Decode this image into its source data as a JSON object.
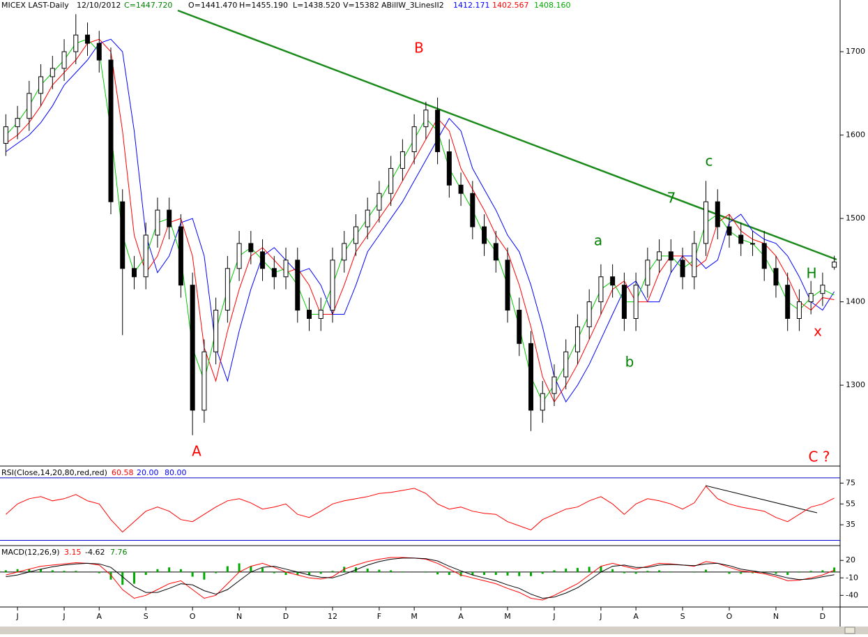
{
  "chart_data": [
    {
      "type": "candlestick",
      "title": "MICEX LAST-Daily",
      "date": "12/10/2012",
      "quote": [
        "C=1447.720",
        "O=1441.470",
        "H=1455.190",
        "L=1438.520",
        "V=15382"
      ],
      "indicator": "ABillW_3LinesII2",
      "categories": [
        null,
        "J",
        null,
        null,
        null,
        "J",
        null,
        null,
        "A",
        null,
        null,
        null,
        "S",
        null,
        null,
        null,
        "O",
        null,
        null,
        null,
        "N",
        null,
        null,
        null,
        "D",
        null,
        null,
        null,
        "12",
        null,
        null,
        null,
        "F",
        null,
        null,
        "M",
        null,
        null,
        null,
        "A",
        null,
        null,
        null,
        "M",
        null,
        null,
        null,
        "J",
        null,
        null,
        null,
        "J",
        null,
        null,
        "A",
        null,
        null,
        null,
        "S",
        null,
        null,
        null,
        "O",
        null,
        null,
        null,
        "N",
        null,
        null,
        null,
        "D",
        null
      ],
      "open": [
        1590,
        1610,
        1620,
        1650,
        1670,
        1680,
        1700,
        1720,
        1710,
        1690,
        1520,
        1440,
        1430,
        1480,
        1510,
        1490,
        1420,
        1270,
        1340,
        1390,
        1440,
        1470,
        1460,
        1440,
        1430,
        1450,
        1390,
        1380,
        1390,
        1450,
        1470,
        1490,
        1510,
        1530,
        1560,
        1580,
        1610,
        1630,
        1580,
        1540,
        1530,
        1490,
        1470,
        1450,
        1390,
        1350,
        1270,
        1290,
        1310,
        1340,
        1370,
        1400,
        1430,
        1420,
        1380,
        1420,
        1450,
        1460,
        1450,
        1430,
        1470,
        1520,
        1490,
        1480,
        1470,
        1470,
        1440,
        1420,
        1380,
        1400,
        1410,
        1441.47
      ],
      "high": [
        1625,
        1635,
        1665,
        1685,
        1695,
        1715,
        1745,
        1735,
        1725,
        1705,
        1535,
        1455,
        1495,
        1525,
        1525,
        1505,
        1435,
        1355,
        1405,
        1455,
        1485,
        1485,
        1475,
        1455,
        1465,
        1465,
        1405,
        1405,
        1465,
        1485,
        1505,
        1525,
        1545,
        1575,
        1595,
        1625,
        1640,
        1645,
        1595,
        1555,
        1545,
        1505,
        1485,
        1465,
        1405,
        1365,
        1305,
        1325,
        1355,
        1385,
        1415,
        1445,
        1445,
        1435,
        1435,
        1465,
        1475,
        1475,
        1465,
        1485,
        1545,
        1535,
        1505,
        1495,
        1485,
        1485,
        1455,
        1435,
        1415,
        1425,
        1435,
        1455.19
      ],
      "low": [
        1575,
        1595,
        1605,
        1635,
        1655,
        1665,
        1685,
        1695,
        1675,
        1505,
        1360,
        1415,
        1415,
        1465,
        1475,
        1405,
        1240,
        1255,
        1325,
        1375,
        1425,
        1445,
        1425,
        1415,
        1415,
        1375,
        1365,
        1365,
        1375,
        1435,
        1455,
        1475,
        1495,
        1515,
        1545,
        1565,
        1595,
        1565,
        1525,
        1515,
        1475,
        1455,
        1435,
        1375,
        1335,
        1245,
        1255,
        1275,
        1295,
        1325,
        1355,
        1385,
        1405,
        1365,
        1365,
        1405,
        1435,
        1435,
        1415,
        1415,
        1455,
        1475,
        1465,
        1455,
        1455,
        1425,
        1405,
        1365,
        1365,
        1385,
        1395,
        1438.52
      ],
      "close": [
        1610,
        1620,
        1650,
        1670,
        1680,
        1700,
        1720,
        1710,
        1690,
        1520,
        1440,
        1430,
        1480,
        1510,
        1490,
        1420,
        1270,
        1340,
        1390,
        1440,
        1470,
        1460,
        1440,
        1430,
        1450,
        1390,
        1380,
        1390,
        1450,
        1470,
        1490,
        1510,
        1530,
        1560,
        1580,
        1610,
        1630,
        1580,
        1540,
        1530,
        1490,
        1470,
        1450,
        1390,
        1350,
        1270,
        1290,
        1310,
        1340,
        1370,
        1400,
        1430,
        1420,
        1380,
        1420,
        1450,
        1460,
        1450,
        1430,
        1470,
        1520,
        1490,
        1480,
        1470,
        1470,
        1440,
        1420,
        1380,
        1400,
        1410,
        1420,
        1447.72
      ],
      "series": [
        {
          "color": "#0000ff",
          "current": "1412.171",
          "values": [
            1580,
            1590,
            1600,
            1615,
            1635,
            1660,
            1675,
            1690,
            1710,
            1715,
            1700,
            1605,
            1480,
            1435,
            1455,
            1495,
            1500,
            1455,
            1345,
            1305,
            1365,
            1415,
            1455,
            1465,
            1450,
            1435,
            1440,
            1420,
            1385,
            1385,
            1420,
            1460,
            1480,
            1500,
            1520,
            1545,
            1570,
            1595,
            1620,
            1605,
            1560,
            1535,
            1510,
            1480,
            1460,
            1420,
            1370,
            1310,
            1280,
            1300,
            1325,
            1355,
            1385,
            1415,
            1425,
            1400,
            1400,
            1435,
            1455,
            1455,
            1440,
            1450,
            1495,
            1505,
            1485,
            1475,
            1470,
            1455,
            1430,
            1400,
            1390,
            1412.171
          ]
        },
        {
          "color": "#ff0000",
          "current": "1402.567",
          "values": [
            1590,
            1600,
            1615,
            1635,
            1660,
            1675,
            1690,
            1710,
            1715,
            1700,
            1605,
            1480,
            1435,
            1455,
            1495,
            1500,
            1455,
            1345,
            1305,
            1365,
            1415,
            1455,
            1465,
            1450,
            1435,
            1440,
            1420,
            1385,
            1385,
            1420,
            1460,
            1480,
            1500,
            1520,
            1545,
            1570,
            1595,
            1620,
            1605,
            1560,
            1535,
            1510,
            1480,
            1460,
            1420,
            1370,
            1310,
            1280,
            1300,
            1325,
            1355,
            1385,
            1415,
            1425,
            1400,
            1400,
            1435,
            1455,
            1455,
            1440,
            1450,
            1495,
            1505,
            1485,
            1475,
            1470,
            1455,
            1430,
            1400,
            1390,
            1405,
            1402.567
          ]
        },
        {
          "color": "#00cc00",
          "current": "1408.160",
          "values": [
            1600,
            1615,
            1635,
            1660,
            1675,
            1690,
            1710,
            1715,
            1700,
            1605,
            1480,
            1435,
            1455,
            1495,
            1500,
            1455,
            1345,
            1305,
            1365,
            1415,
            1455,
            1465,
            1450,
            1435,
            1440,
            1420,
            1385,
            1385,
            1420,
            1460,
            1480,
            1500,
            1520,
            1545,
            1570,
            1595,
            1620,
            1605,
            1560,
            1535,
            1510,
            1480,
            1460,
            1420,
            1370,
            1310,
            1280,
            1300,
            1325,
            1355,
            1385,
            1415,
            1425,
            1400,
            1400,
            1435,
            1455,
            1455,
            1440,
            1450,
            1495,
            1505,
            1485,
            1475,
            1470,
            1455,
            1430,
            1400,
            1390,
            1405,
            1415,
            1408.16
          ]
        }
      ],
      "ylim": [
        1203,
        1762
      ],
      "yticks": [
        1300,
        1400,
        1500,
        1600,
        1700
      ],
      "annotations": [
        "B",
        "A",
        "a",
        "b",
        "c",
        "7",
        "H",
        "x",
        "C ?"
      ]
    },
    {
      "type": "line",
      "title": "RSI(Close,14,20,80,red,red)",
      "readings": [
        "60.58",
        "20.00",
        "80.00"
      ],
      "color": "#ff0000",
      "values": [
        45,
        55,
        60,
        62,
        58,
        60,
        64,
        58,
        55,
        40,
        28,
        38,
        48,
        52,
        48,
        40,
        38,
        45,
        52,
        58,
        60,
        56,
        50,
        52,
        55,
        45,
        42,
        48,
        55,
        58,
        60,
        62,
        65,
        66,
        68,
        70,
        65,
        55,
        50,
        52,
        48,
        46,
        45,
        38,
        34,
        30,
        40,
        45,
        50,
        52,
        58,
        62,
        55,
        45,
        55,
        60,
        58,
        55,
        50,
        56,
        72,
        60,
        55,
        52,
        50,
        48,
        42,
        38,
        45,
        52,
        55,
        60.58
      ],
      "levels": [
        20,
        80
      ],
      "ylim": [
        15,
        90
      ],
      "yticks": [
        35,
        55,
        75
      ]
    },
    {
      "type": "line",
      "title": "MACD(12,26,9)",
      "readings": [
        "3.15",
        "-4.62",
        "7.76"
      ],
      "series": [
        {
          "color": "#ff0000",
          "values": [
            -5,
            0,
            5,
            10,
            12,
            14,
            16,
            15,
            12,
            -5,
            -30,
            -45,
            -40,
            -30,
            -20,
            -15,
            -30,
            -45,
            -40,
            -20,
            0,
            10,
            15,
            8,
            0,
            -5,
            -10,
            -12,
            -8,
            5,
            12,
            18,
            22,
            25,
            25,
            24,
            22,
            15,
            5,
            -5,
            -10,
            -15,
            -20,
            -28,
            -35,
            -45,
            -48,
            -40,
            -30,
            -20,
            -5,
            10,
            15,
            10,
            5,
            10,
            15,
            14,
            12,
            10,
            18,
            15,
            8,
            2,
            0,
            -3,
            -8,
            -15,
            -14,
            -10,
            -5,
            3.15
          ]
        },
        {
          "color": "#000000",
          "values": [
            -8,
            -5,
            0,
            5,
            9,
            12,
            14,
            15,
            14,
            8,
            -8,
            -25,
            -35,
            -35,
            -28,
            -20,
            -22,
            -32,
            -38,
            -30,
            -15,
            0,
            8,
            10,
            5,
            0,
            -5,
            -9,
            -10,
            -4,
            4,
            12,
            18,
            22,
            24,
            24,
            23,
            19,
            10,
            2,
            -5,
            -10,
            -15,
            -22,
            -28,
            -38,
            -45,
            -43,
            -36,
            -27,
            -14,
            0,
            10,
            12,
            8,
            8,
            12,
            13,
            12,
            11,
            14,
            15,
            11,
            5,
            2,
            -1,
            -5,
            -10,
            -13,
            -12,
            -8,
            -4.62
          ]
        }
      ],
      "histogram": {
        "color": "#00aa00",
        "values": [
          3,
          5,
          5,
          5,
          3,
          2,
          2,
          0,
          -2,
          -13,
          -22,
          -20,
          -5,
          5,
          8,
          5,
          -8,
          -13,
          -2,
          10,
          15,
          10,
          7,
          -2,
          -5,
          -5,
          -5,
          -3,
          2,
          9,
          8,
          6,
          4,
          3,
          1,
          0,
          -1,
          -4,
          -5,
          -7,
          -5,
          -5,
          -5,
          -6,
          -7,
          -7,
          -3,
          3,
          6,
          7,
          9,
          10,
          5,
          -2,
          -3,
          2,
          3,
          1,
          0,
          -1,
          4,
          0,
          -3,
          -3,
          -2,
          -2,
          -3,
          -5,
          -1,
          2,
          3,
          7.76
        ]
      },
      "ylim": [
        -60,
        43
      ],
      "yticks": [
        20,
        -10,
        -40
      ]
    }
  ]
}
